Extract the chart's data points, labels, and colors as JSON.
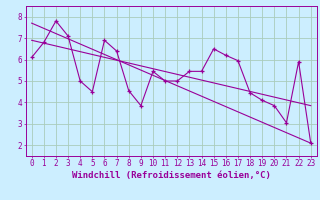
{
  "xlabel": "Windchill (Refroidissement éolien,°C)",
  "xlim": [
    -0.5,
    23.5
  ],
  "ylim": [
    1.5,
    8.5
  ],
  "yticks": [
    2,
    3,
    4,
    5,
    6,
    7,
    8
  ],
  "xticks": [
    0,
    1,
    2,
    3,
    4,
    5,
    6,
    7,
    8,
    9,
    10,
    11,
    12,
    13,
    14,
    15,
    16,
    17,
    18,
    19,
    20,
    21,
    22,
    23
  ],
  "data_x": [
    0,
    1,
    2,
    3,
    4,
    5,
    6,
    7,
    8,
    9,
    10,
    11,
    12,
    13,
    14,
    15,
    16,
    17,
    18,
    19,
    20,
    21,
    22,
    23
  ],
  "data_y": [
    6.1,
    6.8,
    7.8,
    7.1,
    5.0,
    4.5,
    6.9,
    6.4,
    4.55,
    3.85,
    5.45,
    5.0,
    5.0,
    5.45,
    5.45,
    6.5,
    6.2,
    5.95,
    4.45,
    4.1,
    3.85,
    3.05,
    5.9,
    2.1
  ],
  "trend1_x": [
    0,
    23
  ],
  "trend1_y": [
    7.7,
    2.1
  ],
  "trend2_x": [
    0,
    23
  ],
  "trend2_y": [
    6.9,
    3.85
  ],
  "line_color": "#990099",
  "bg_color": "#cceeff",
  "grid_color": "#aaccbb",
  "tick_label_fontsize": 5.5,
  "xlabel_fontsize": 6.5
}
